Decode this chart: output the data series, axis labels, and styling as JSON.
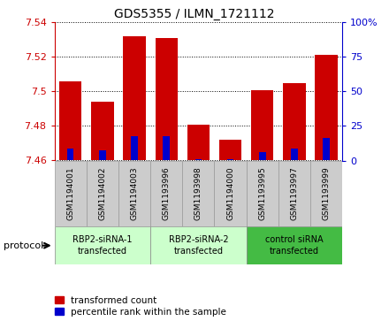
{
  "title": "GDS5355 / ILMN_1721112",
  "samples": [
    "GSM1194001",
    "GSM1194002",
    "GSM1194003",
    "GSM1193996",
    "GSM1193998",
    "GSM1194000",
    "GSM1193995",
    "GSM1193997",
    "GSM1193999"
  ],
  "red_tops": [
    7.506,
    7.494,
    7.532,
    7.531,
    7.481,
    7.472,
    7.501,
    7.505,
    7.521
  ],
  "blue_tops": [
    7.467,
    7.466,
    7.474,
    7.474,
    7.461,
    7.461,
    7.465,
    7.467,
    7.473
  ],
  "base": 7.46,
  "ylim_left": [
    7.46,
    7.54
  ],
  "ylim_right": [
    0,
    100
  ],
  "yticks_left": [
    7.46,
    7.48,
    7.5,
    7.52,
    7.54
  ],
  "ytick_labels_left": [
    "7.46",
    "7.48",
    "7.5",
    "7.52",
    "7.54"
  ],
  "yticks_right": [
    0,
    25,
    50,
    75,
    100
  ],
  "ytick_labels_right": [
    "0",
    "25",
    "50",
    "75",
    "100%"
  ],
  "red_color": "#cc0000",
  "blue_color": "#0000cc",
  "bar_width": 0.7,
  "group_defs": [
    {
      "start": 0,
      "end": 2,
      "color": "#ccffcc",
      "label": "RBP2-siRNA-1\ntransfected"
    },
    {
      "start": 3,
      "end": 5,
      "color": "#ccffcc",
      "label": "RBP2-siRNA-2\ntransfected"
    },
    {
      "start": 6,
      "end": 8,
      "color": "#44bb44",
      "label": "control siRNA\ntransfected"
    }
  ],
  "tick_color_left": "#cc0000",
  "tick_color_right": "#0000cc",
  "sample_box_color": "#cccccc",
  "sample_box_edge": "#999999"
}
